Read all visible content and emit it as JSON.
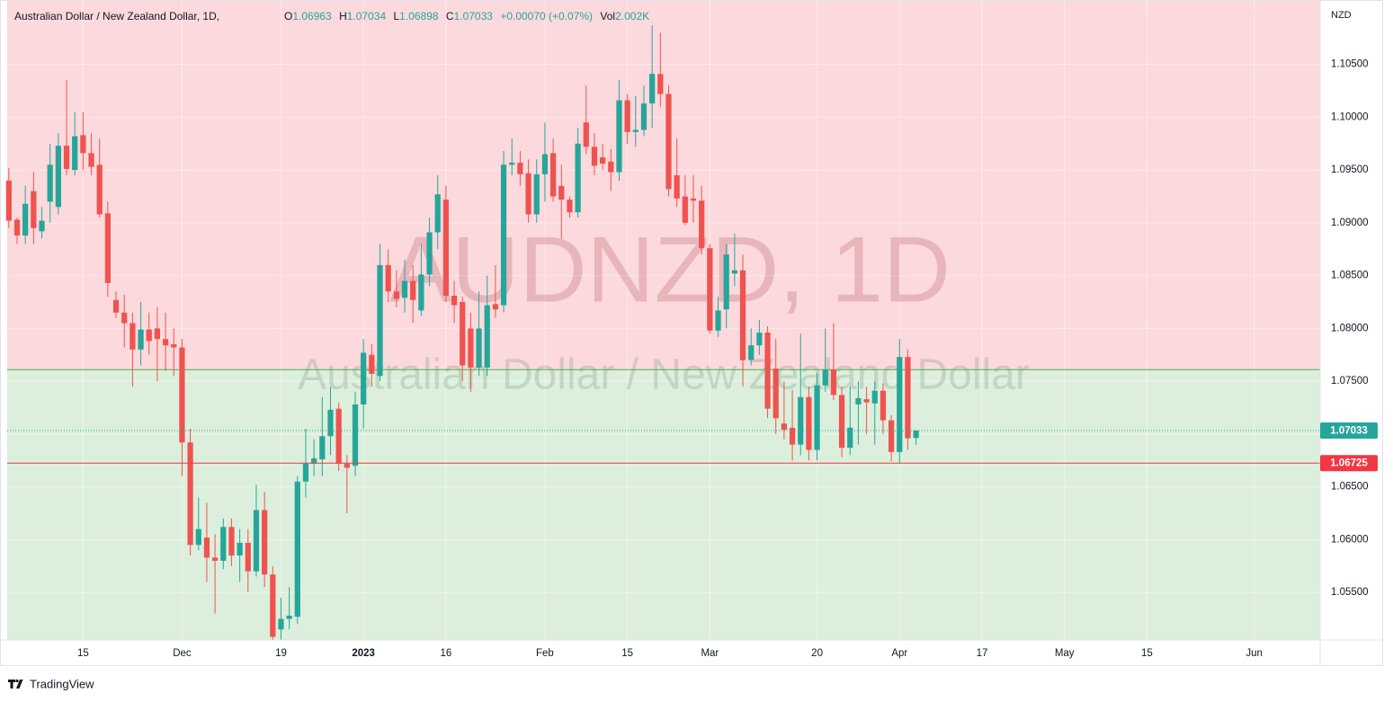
{
  "chart_data": {
    "type": "candlestick",
    "header": {
      "title": "Australian Dollar / New Zealand Dollar, 1D,",
      "open_label": "O",
      "high_label": "H",
      "low_label": "L",
      "close_label": "C",
      "change": "+0.00070 (+0.07%)",
      "volume_label": "Vol",
      "volume": "2.002K"
    },
    "watermark": "AUDNZD, 1D",
    "watermark_subtitle": "Australian Dollar / New Zealand Dollar",
    "currency": "NZD",
    "brand": "TradingView",
    "up_color": "#26a69a",
    "down_color": "#ef5350",
    "open": [
      1.094,
      1.0903,
      1.0888,
      1.093,
      1.0892,
      1.092,
      1.0915,
      1.0973,
      1.095,
      1.0983,
      1.0966,
      1.0955,
      1.0909,
      1.0827,
      1.0815,
      1.0805,
      1.078,
      1.0799,
      1.08,
      1.079,
      1.0785,
      1.0782,
      1.0692,
      1.0595,
      1.0602,
      1.0583,
      1.058,
      1.0612,
      1.0585,
      1.0597,
      1.057,
      1.0628,
      1.0567,
      1.0515,
      1.0525,
      1.0527,
      1.0655,
      1.0672,
      1.0676,
      1.0698,
      1.0724,
      1.0672,
      1.067,
      1.0728,
      1.0775,
      1.0755,
      1.086,
      1.0835,
      1.0829,
      1.0845,
      1.0817,
      1.0851,
      1.0891,
      1.0922,
      1.0831,
      1.0825,
      1.08,
      1.0763,
      1.0763,
      1.0823,
      1.0822,
      1.0955,
      1.0957,
      1.0947,
      1.0908,
      1.0946,
      1.0966,
      1.0935,
      1.0922,
      1.091,
      1.0995,
      1.0972,
      1.0962,
      1.0958,
      1.0948,
      1.1016,
      1.0986,
      1.0988,
      1.1013,
      1.1041,
      1.1022,
      1.0945,
      1.0925,
      1.0923,
      1.0921,
      1.0876,
      1.0798,
      1.0818,
      1.0852,
      1.0855,
      1.077,
      1.0784,
      1.0796,
      1.0762,
      1.071,
      1.0706,
      1.069,
      1.0735,
      1.0685,
      1.0746,
      1.0761,
      1.0737,
      1.0687,
      1.0728,
      1.0733,
      1.0729,
      1.0741,
      1.0713,
      1.0683,
      1.0773,
      1.06963
    ],
    "high": [
      1.0952,
      1.0905,
      1.0935,
      1.0948,
      1.0915,
      1.0975,
      1.0985,
      1.1035,
      1.1005,
      1.1005,
      1.0985,
      1.098,
      1.092,
      1.0835,
      1.0832,
      1.0815,
      1.0825,
      1.0815,
      1.082,
      1.0815,
      1.08,
      1.079,
      1.0705,
      1.064,
      1.0635,
      1.0605,
      1.062,
      1.062,
      1.061,
      1.061,
      1.0652,
      1.0645,
      1.0575,
      1.0545,
      1.0555,
      1.066,
      1.0705,
      1.0695,
      1.0735,
      1.0745,
      1.073,
      1.068,
      1.074,
      1.079,
      1.0785,
      1.088,
      1.0875,
      1.0855,
      1.0865,
      1.086,
      1.088,
      1.0905,
      1.0945,
      1.0935,
      1.0845,
      1.083,
      1.0815,
      1.0835,
      1.085,
      1.086,
      1.0968,
      1.098,
      1.0968,
      1.096,
      1.096,
      1.0995,
      1.098,
      1.0955,
      1.0925,
      1.099,
      1.103,
      1.0985,
      1.0975,
      1.097,
      1.1035,
      1.1022,
      1.102,
      1.103,
      1.1087,
      1.108,
      1.103,
      1.098,
      1.0945,
      1.0945,
      1.0935,
      1.088,
      1.083,
      1.088,
      1.089,
      1.087,
      1.08,
      1.0808,
      1.0802,
      1.079,
      1.075,
      1.0742,
      1.0795,
      1.0745,
      1.0758,
      1.08,
      1.0805,
      1.0745,
      1.0745,
      1.075,
      1.0745,
      1.075,
      1.0748,
      1.0718,
      1.079,
      1.078,
      1.07034
    ],
    "low": [
      1.0895,
      1.088,
      1.088,
      1.088,
      1.0885,
      1.09,
      1.0908,
      1.0945,
      1.0945,
      1.095,
      1.0945,
      1.0905,
      1.083,
      1.081,
      1.0782,
      1.0745,
      1.0765,
      1.0775,
      1.075,
      1.076,
      1.0755,
      1.066,
      1.0585,
      1.059,
      1.056,
      1.053,
      1.0572,
      1.0575,
      1.056,
      1.055,
      1.0565,
      1.0555,
      1.0505,
      1.0505,
      1.0515,
      1.052,
      1.064,
      1.066,
      1.066,
      1.068,
      1.0665,
      1.0625,
      1.066,
      1.0705,
      1.0745,
      1.075,
      1.0825,
      1.082,
      1.0815,
      1.0805,
      1.0812,
      1.084,
      1.0875,
      1.0825,
      1.0805,
      1.075,
      1.074,
      1.0755,
      1.0755,
      1.081,
      1.0815,
      1.0945,
      1.0935,
      1.09,
      1.09,
      1.092,
      1.092,
      1.0885,
      1.0905,
      1.0905,
      1.0965,
      1.0945,
      1.095,
      1.093,
      1.094,
      1.0975,
      1.0972,
      1.0982,
      1.099,
      1.101,
      1.0925,
      1.0915,
      1.0898,
      1.09,
      1.087,
      1.0795,
      1.0792,
      1.08,
      1.084,
      1.0745,
      1.0765,
      1.0775,
      1.0715,
      1.07,
      1.0695,
      1.0675,
      1.068,
      1.0675,
      1.0675,
      1.074,
      1.0732,
      1.0678,
      1.068,
      1.069,
      1.07,
      1.069,
      1.07,
      1.0674,
      1.0672,
      1.0685,
      1.06898
    ],
    "close": [
      1.0902,
      1.0888,
      1.0918,
      1.0895,
      1.0902,
      1.0955,
      1.0973,
      1.0951,
      1.0982,
      1.0966,
      1.0953,
      1.0908,
      1.0843,
      1.0815,
      1.0805,
      1.078,
      1.0799,
      1.0788,
      1.079,
      1.0784,
      1.0782,
      1.0692,
      1.0595,
      1.061,
      1.0583,
      1.058,
      1.0612,
      1.0585,
      1.0597,
      1.057,
      1.0628,
      1.0567,
      1.0508,
      1.0525,
      1.0528,
      1.0655,
      1.0672,
      1.0677,
      1.0698,
      1.0723,
      1.0672,
      1.0668,
      1.0728,
      1.0777,
      1.0757,
      1.086,
      1.0835,
      1.0828,
      1.0845,
      1.0827,
      1.0851,
      1.0891,
      1.0927,
      1.0831,
      1.0822,
      1.0765,
      1.0763,
      1.08,
      1.0822,
      1.0818,
      1.0955,
      1.0957,
      1.0946,
      1.0908,
      1.0946,
      1.0965,
      1.0925,
      1.0922,
      1.091,
      1.0975,
      1.0972,
      1.0954,
      1.0956,
      1.0948,
      1.1016,
      1.0986,
      1.0988,
      1.1013,
      1.1041,
      1.1022,
      1.0932,
      1.0923,
      1.09,
      1.0921,
      1.0876,
      1.0798,
      1.0817,
      1.087,
      1.0855,
      1.077,
      1.0784,
      1.0796,
      1.0724,
      1.0715,
      1.0704,
      1.069,
      1.0735,
      1.0685,
      1.0746,
      1.0761,
      1.0737,
      1.0687,
      1.0706,
      1.0734,
      1.073,
      1.0741,
      1.0713,
      1.0683,
      1.0773,
      1.0696,
      1.07033
    ],
    "zone_boundary": 1.0761,
    "upper_zone_color": "#fcd9dc",
    "lower_zone_color": "#dcefdc",
    "horizontal_line": 1.06725,
    "horizontal_line_color": "#f23645",
    "ylim": [
      1.0505,
      1.1111
    ],
    "yticks": [
      {
        "value": 1.055,
        "label": "1.05500"
      },
      {
        "value": 1.06,
        "label": "1.06000"
      },
      {
        "value": 1.065,
        "label": "1.06500"
      },
      {
        "value": 1.07,
        "label": "1.07000"
      },
      {
        "value": 1.075,
        "label": "1.07500"
      },
      {
        "value": 1.08,
        "label": "1.08000"
      },
      {
        "value": 1.085,
        "label": "1.08500"
      },
      {
        "value": 1.09,
        "label": "1.09000"
      },
      {
        "value": 1.095,
        "label": "1.09500"
      },
      {
        "value": 1.1,
        "label": "1.10000"
      },
      {
        "value": 1.105,
        "label": "1.10500"
      }
    ],
    "xlim": [
      -0.2,
      159
    ],
    "xticks": [
      {
        "value": 9,
        "label": "15"
      },
      {
        "value": 21,
        "label": "Dec"
      },
      {
        "value": 33,
        "label": "19"
      },
      {
        "value": 43,
        "label": "2023"
      },
      {
        "value": 53,
        "label": "16"
      },
      {
        "value": 65,
        "label": "Feb"
      },
      {
        "value": 75,
        "label": "15"
      },
      {
        "value": 85,
        "label": "Mar"
      },
      {
        "value": 98,
        "label": "20"
      },
      {
        "value": 108,
        "label": "Apr"
      },
      {
        "value": 118,
        "label": "17"
      },
      {
        "value": 128,
        "label": "May"
      },
      {
        "value": 138,
        "label": "15"
      },
      {
        "value": 151,
        "label": "Jun"
      }
    ],
    "grid": true
  }
}
